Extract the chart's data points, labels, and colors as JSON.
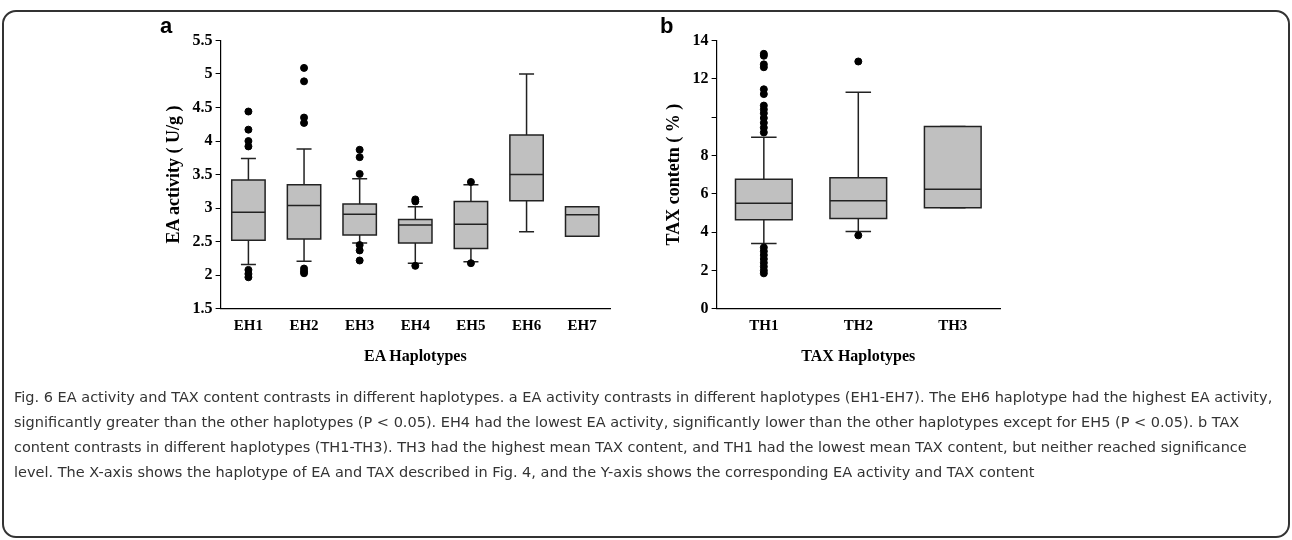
{
  "chart_data": [
    {
      "type": "box",
      "title": "a",
      "xlabel": "EA Haplotypes",
      "ylabel": "EA activity ( U/g )",
      "color": "#c0c0c0",
      "grid": false,
      "categories": [
        "EH1",
        "EH2",
        "EH3",
        "EH4",
        "EH5",
        "EH6",
        "EH7"
      ],
      "boxes": [
        {
          "low": 2.16,
          "q1": 2.52,
          "median": 2.94,
          "q3": 3.42,
          "high": 3.74,
          "outliers": [
            4.44,
            4.17,
            4.0,
            3.92,
            2.08,
            2.02,
            1.97
          ]
        },
        {
          "low": 2.21,
          "q1": 2.54,
          "median": 3.04,
          "q3": 3.35,
          "high": 3.88,
          "outliers": [
            5.09,
            4.89,
            4.35,
            4.27,
            2.1,
            2.06,
            2.03
          ]
        },
        {
          "low": 2.48,
          "q1": 2.6,
          "median": 2.91,
          "q3": 3.06,
          "high": 3.44,
          "outliers": [
            3.87,
            3.76,
            3.51,
            2.45,
            2.37,
            2.22
          ]
        },
        {
          "low": 2.18,
          "q1": 2.48,
          "median": 2.75,
          "q3": 2.83,
          "high": 3.02,
          "outliers": [
            3.13,
            3.1,
            2.14
          ]
        },
        {
          "low": 2.2,
          "q1": 2.4,
          "median": 2.76,
          "q3": 3.1,
          "high": 3.35,
          "outliers": [
            3.39,
            2.18
          ]
        },
        {
          "low": 2.65,
          "q1": 3.11,
          "median": 3.5,
          "q3": 4.09,
          "high": 5.0
        },
        {
          "low": 2.58,
          "q1": 2.58,
          "median": 2.9,
          "q3": 3.02,
          "high": 3.02
        }
      ],
      "ylim": [
        1.5,
        5.5
      ],
      "yticks": [
        1.5,
        2.0,
        2.5,
        3.0,
        3.5,
        4.0,
        4.5,
        5.0,
        5.5
      ],
      "annotations": [
        "Fig. 6 EA activity and TAX content contrasts in different haplotypes. a EA activity contrasts in different haplotypes (EH1-EH7). The EH6 haplotype had the highest EA activity, significantly greater than the other haplotypes (P < 0.05). EH4 had the lowest EA activity, significantly lower than the other haplotypes except for EH5 (P < 0.05). b TAX content contrasts in different haplotypes (TH1-TH3). TH3 had the highest mean TAX content, and TH1 had the lowest mean TAX content, but neither reached significance level. The X-axis shows the haplotype of EA and TAX described in Fig. 4, and the Y-axis shows the corresponding EA activity and TAX content"
      ]
    },
    {
      "type": "box",
      "title": "b",
      "xlabel": "TAX Haplotypes",
      "ylabel": "TAX contetn ( % )",
      "color": "#c0c0c0",
      "grid": false,
      "categories": [
        "TH1",
        "TH2",
        "TH3"
      ],
      "boxes": [
        {
          "low": 3.41,
          "q1": 4.64,
          "median": 5.51,
          "q3": 6.76,
          "high": 8.95,
          "outliers": [
            13.3,
            13.2,
            12.75,
            12.6,
            11.45,
            11.2,
            10.6,
            10.4,
            10.2,
            9.95,
            9.7,
            9.45,
            9.2,
            3.2,
            3.0,
            2.8,
            2.6,
            2.4,
            2.2,
            2.0,
            1.85
          ]
        },
        {
          "low": 4.03,
          "q1": 4.71,
          "median": 5.63,
          "q3": 6.83,
          "high": 11.29,
          "outliers": [
            12.9,
            3.83
          ]
        },
        {
          "low": 5.27,
          "q1": 5.27,
          "median": 6.24,
          "q3": 9.51,
          "high": 9.51
        }
      ],
      "ylim": [
        0,
        14
      ],
      "yticks": [
        0,
        2,
        4,
        6,
        8,
        {
          "value": 10,
          "label": null
        },
        12,
        14
      ]
    }
  ]
}
